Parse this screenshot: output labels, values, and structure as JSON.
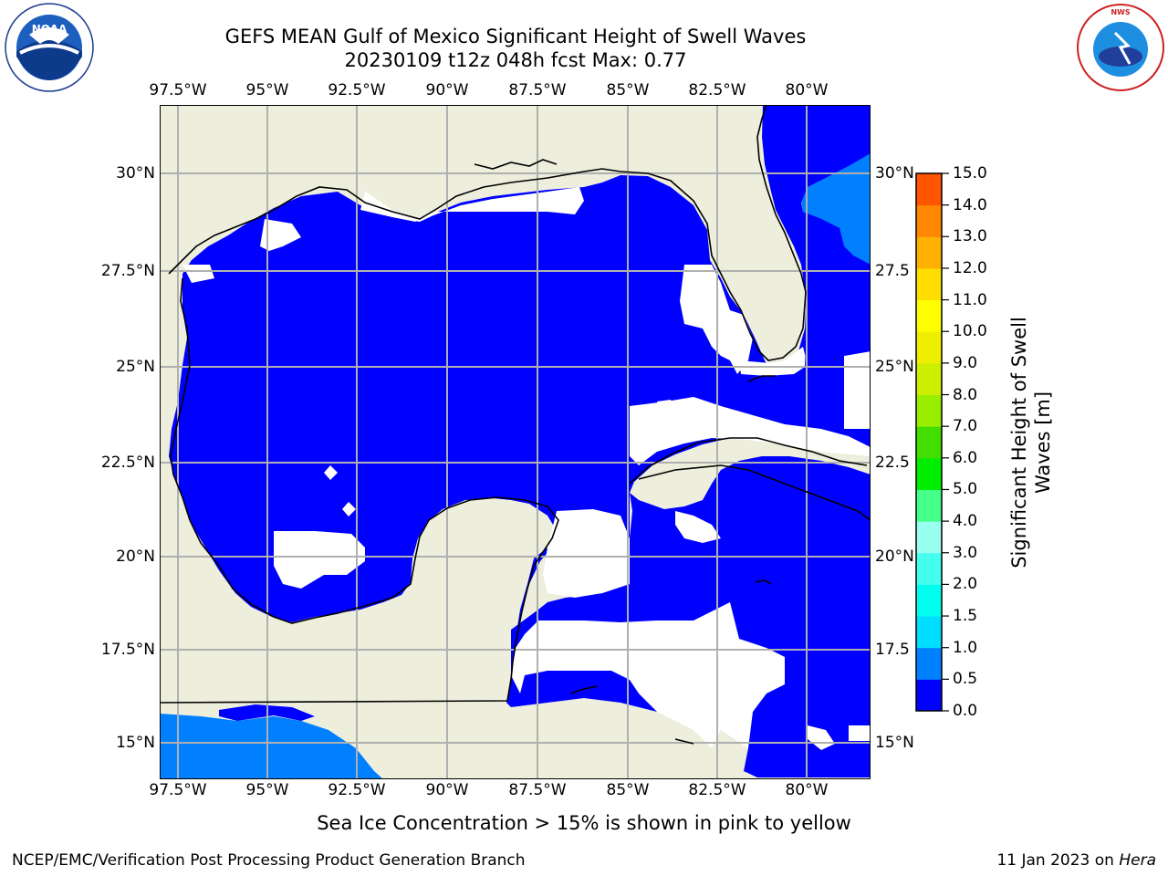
{
  "title": {
    "line1": "GEFS MEAN Gulf of Mexico Significant Height of Swell Waves",
    "line2": "20230109 t12z 048h fcst   Max: 0.77"
  },
  "map": {
    "region": "Gulf of Mexico",
    "lon_ticks": [
      "97.5°W",
      "95°W",
      "92.5°W",
      "90°W",
      "87.5°W",
      "85°W",
      "82.5°W",
      "80°W"
    ],
    "lat_ticks_left": [
      "30°N",
      "27.5°N",
      "25°N",
      "22.5°N",
      "20°N",
      "17.5°N",
      "15°N"
    ],
    "lat_ticks_right": [
      "30°N",
      "27.5",
      "25°N",
      "22.5",
      "20°N",
      "17.5",
      "15°N"
    ],
    "colors": {
      "land": "#eeeedd",
      "swell_0_0.5": "#0000ff",
      "swell_0.5_1.0": "#0080ff",
      "gridline": "#b0b0b0",
      "coastline": "#000000"
    }
  },
  "colorbar": {
    "label": "Significant Height of Swell Waves [m]",
    "label_lines": [
      "Significant Height of Swell",
      "Waves [m]"
    ],
    "ticks": [
      "0.0",
      "0.5",
      "1.0",
      "1.5",
      "2.0",
      "3.0",
      "4.0",
      "5.0",
      "6.0",
      "7.0",
      "8.0",
      "9.0",
      "10.0",
      "11.0",
      "12.0",
      "13.0",
      "14.0",
      "15.0"
    ],
    "colors": [
      "#0000ff",
      "#0080ff",
      "#00ddff",
      "#00ffee",
      "#44ffee",
      "#99ffee",
      "#44ff88",
      "#00ee00",
      "#44dd00",
      "#99ee00",
      "#ccee00",
      "#eeee00",
      "#ffff00",
      "#ffdd00",
      "#ffb000",
      "#ff8800",
      "#ff5500",
      "#ff2200",
      "#ff0000"
    ]
  },
  "logos": {
    "left": {
      "name": "noaa-logo",
      "text": "NOAA"
    },
    "right": {
      "name": "nws-logo",
      "text": "NATIONAL WEATHER SERVICE"
    }
  },
  "footnote": "Sea Ice Concentration > 15% is shown in pink to yellow",
  "credit": "NCEP/EMC/Verification Post Processing Product Generation Branch",
  "date": {
    "text": "11 Jan 2023 on",
    "machine": "Hera"
  }
}
